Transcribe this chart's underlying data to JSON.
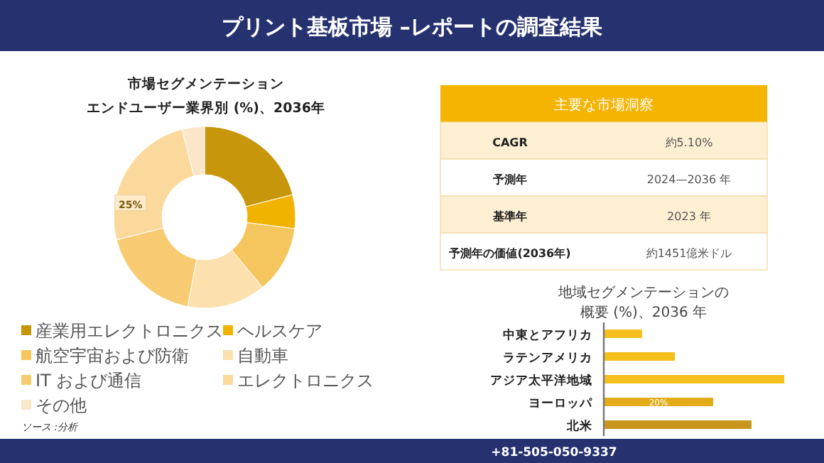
{
  "chart_data": [
    {
      "type": "donut",
      "title": "プリント基板市場 –レポートの調査結果",
      "subtitle": "市場セグメンテーションエンドユーザー業界別 (%)、2036年",
      "categories": [
        "産業用エレクトロニクス",
        "ヘルスケア",
        "航空宇宙および防衛",
        "自動車",
        "IT および通信",
        "エレクトロニクス",
        "その他"
      ],
      "values": [
        21,
        6,
        12,
        14,
        18,
        25,
        4
      ],
      "colors": [
        "#c8960a",
        "#f0b400",
        "#f6c65e",
        "#fce0ae",
        "#f8cb72",
        "#fbd99c",
        "#fce6ca"
      ],
      "value_labels": [
        null,
        null,
        null,
        null,
        null,
        "25%",
        null
      ],
      "legend": "bottom",
      "annotations": [
        "ソース :分析",
        "+81-505-050-9337"
      ]
    },
    {
      "type": "other",
      "title": "主要な市場洞察",
      "annotations": [
        "CAGR",
        "約5.10%",
        "予測年",
        "2024—2036 年",
        "基準年",
        "2023 年",
        "予測年の価値(2036年)",
        "約1451億米ドル"
      ]
    },
    {
      "type": "bar",
      "orientation": "horizontal",
      "title": "地域セグメンテーションの概要 (%)、2036 年",
      "categories": [
        "中東とアフリカ",
        "ラテンアメリカ",
        "アジア太平洋地域",
        "ヨーロッパ",
        "北米"
      ],
      "values": [
        7,
        13,
        33,
        20,
        27
      ],
      "colors": [
        "#f5bf1e",
        "#f5bf1e",
        "#f5bf1e",
        "#e3ab18",
        "#c8961e"
      ],
      "value_labels": [
        null,
        null,
        null,
        "20%",
        null
      ]
    }
  ]
}
